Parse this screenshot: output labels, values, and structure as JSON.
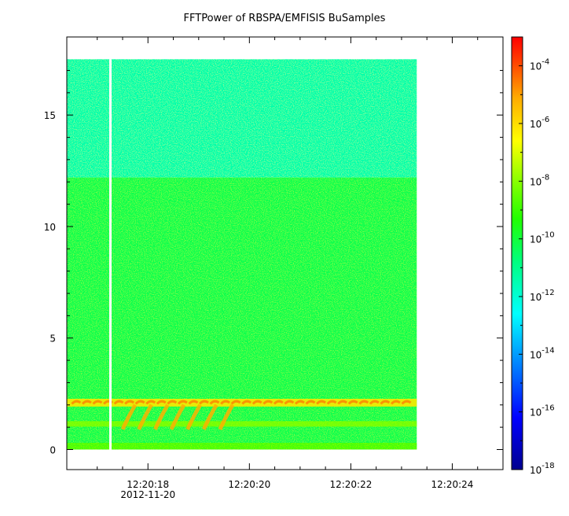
{
  "chart_data": {
    "type": "heatmap",
    "title": "FFTPower of RBSPA/EMFISIS  BuSamples",
    "xlabel": "",
    "ylabel": "",
    "x_tick_labels": [
      "12:20:18",
      "12:20:20",
      "12:20:22",
      "12:20:24"
    ],
    "x_tick_values_seconds": [
      18,
      20,
      22,
      24
    ],
    "x_date_label": "2012-11-20",
    "xlim_seconds": [
      16.4,
      25.0
    ],
    "data_xrange_seconds": [
      16.4,
      23.3
    ],
    "y_tick_values": [
      0,
      5,
      10,
      15
    ],
    "ylim": [
      -0.9,
      18.5
    ],
    "data_yrange": [
      0,
      17.5
    ],
    "colorbar": {
      "scale": "log",
      "min": 1e-18,
      "max": 0.001,
      "tick_exponents": [
        -18,
        -16,
        -14,
        -12,
        -10,
        -8,
        -6,
        -4
      ],
      "tick_base": "10"
    },
    "features": [
      {
        "description_value": "background above 12.2 (log10 power)",
        "y_range": [
          12.2,
          17.5
        ],
        "log10_power": -11.4
      },
      {
        "description_value": "background below 12.2 (log10 power)",
        "y_range": [
          0,
          12.2
        ],
        "log10_power": -10.2
      },
      {
        "description_value": "strong band",
        "y_center": 2.1,
        "log10_power": -6.2
      },
      {
        "description_value": "secondary band",
        "y_center": 1.15,
        "log10_power": -8.2
      },
      {
        "description_value": "low band",
        "y_center": 0.15,
        "log10_power": -8.8
      }
    ],
    "data_gap_seconds": 17.26,
    "colors": {
      "axis": "#000000",
      "gap": "#ffffff"
    }
  }
}
